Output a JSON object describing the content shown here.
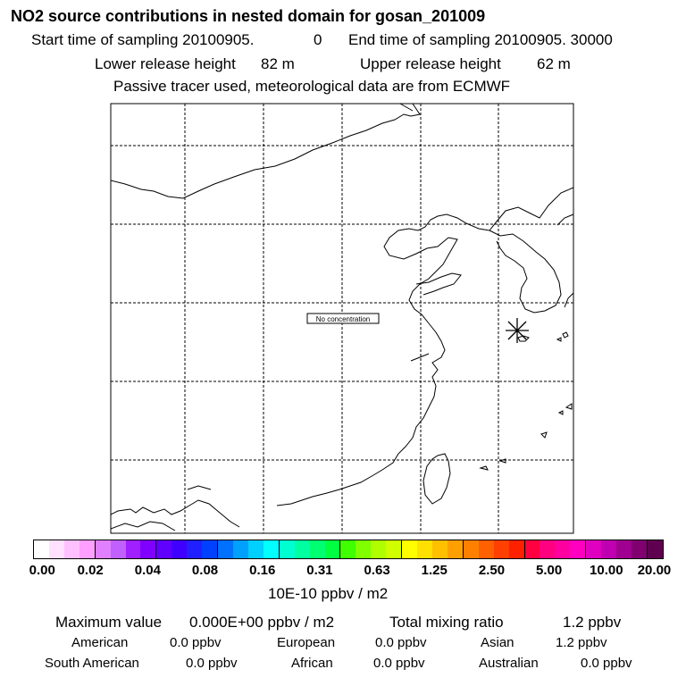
{
  "header": {
    "title": "NO2 source contributions in nested domain for gosan_201009",
    "start_label": "Start time of sampling 20100905.",
    "start_value": "0",
    "end_label": "End time of sampling 20100905. 30000",
    "lower_label": "Lower release height",
    "lower_value": "82 m",
    "upper_label": "Upper release height",
    "upper_value": "62 m",
    "tracer_note": "Passive tracer used, meteorological data are from ECMWF"
  },
  "map": {
    "annotation": "No concentration",
    "receptor_marker": "asterisk-receptor-icon",
    "coastline_color": "#000000",
    "grid_style": "dashed"
  },
  "legend": {
    "colors": [
      "#ffffff",
      "#ffe0ff",
      "#ffc0ff",
      "#ff9fff",
      "#e080ff",
      "#c060ff",
      "#a020ff",
      "#8000ff",
      "#6000ff",
      "#4000ff",
      "#2020ff",
      "#0040ff",
      "#0070ff",
      "#00a0ff",
      "#00d0ff",
      "#00ffff",
      "#00ffd0",
      "#00ffa0",
      "#00ff70",
      "#00ff40",
      "#40ff00",
      "#80ff00",
      "#b0ff00",
      "#d0ff00",
      "#ffff00",
      "#ffe000",
      "#ffc000",
      "#ffa000",
      "#ff8000",
      "#ff6000",
      "#ff4000",
      "#ff2000",
      "#ff0040",
      "#ff0080",
      "#ff00a0",
      "#ff00c0",
      "#e000c0",
      "#c000b0",
      "#a00090",
      "#800070",
      "#600050"
    ],
    "ticks": [
      "0.00",
      "0.02",
      "0.04",
      "0.08",
      "0.16",
      "0.31",
      "0.63",
      "1.25",
      "2.50",
      "5.00",
      "10.00",
      "20.00"
    ],
    "units": "10E-10 ppbv / m2"
  },
  "summary": {
    "max_label": "Maximum value",
    "max_value": "0.000E+00 ppbv / m2",
    "total_label": "Total mixing ratio",
    "total_value": "1.2 ppbv",
    "regions": [
      {
        "name": "American",
        "value": "0.0 ppbv"
      },
      {
        "name": "European",
        "value": "0.0 ppbv"
      },
      {
        "name": "Asian",
        "value": "1.2 ppbv"
      },
      {
        "name": "South American",
        "value": "0.0 ppbv"
      },
      {
        "name": "African",
        "value": "0.0 ppbv"
      },
      {
        "name": "Australian",
        "value": "0.0 ppbv"
      }
    ]
  }
}
